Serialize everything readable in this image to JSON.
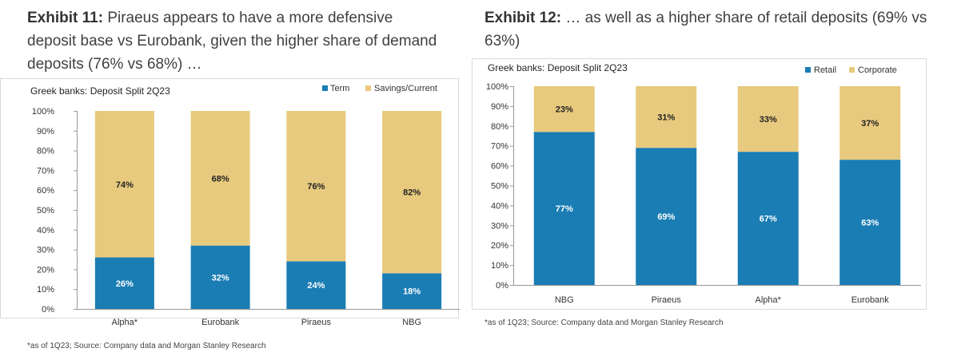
{
  "exhibit11": {
    "label": "Exhibit 11:",
    "text": "Piraeus appears to have a more defensive deposit base vs Eurobank, given the higher share of demand deposits (76% vs 68%) …",
    "footnote": "*as of 1Q23; Source: Company data and Morgan Stanley Research"
  },
  "exhibit12": {
    "label": "Exhibit 12:",
    "text": "… as well as a higher share of retail deposits (69% vs 63%)",
    "footnote": "*as of 1Q23; Source: Company data and Morgan Stanley Research"
  },
  "colors": {
    "blue": "#1a7db4",
    "tan": "#e8ca7e",
    "grid": "#d9d9d9",
    "axis": "#999999"
  },
  "chart_data": [
    {
      "type": "bar",
      "stacked": true,
      "title": "Greek banks: Deposit Split 2Q23",
      "categories": [
        "Alpha*",
        "Eurobank",
        "Piraeus",
        "NBG"
      ],
      "series": [
        {
          "name": "Term",
          "values": [
            26,
            32,
            24,
            18
          ],
          "labels": [
            "26%",
            "32%",
            "24%",
            "18%"
          ]
        },
        {
          "name": "Savings/Current",
          "values": [
            74,
            68,
            76,
            82
          ],
          "labels": [
            "74%",
            "68%",
            "76%",
            "82%"
          ]
        }
      ],
      "yticks": [
        "0%",
        "10%",
        "20%",
        "30%",
        "40%",
        "50%",
        "60%",
        "70%",
        "80%",
        "90%",
        "100%"
      ],
      "ylim": [
        0,
        100
      ],
      "legend": "top-right",
      "xlabel": "",
      "ylabel": ""
    },
    {
      "type": "bar",
      "stacked": true,
      "title": "Greek banks: Deposit Split 2Q23",
      "categories": [
        "NBG",
        "Piraeus",
        "Alpha*",
        "Eurobank"
      ],
      "series": [
        {
          "name": "Retail",
          "values": [
            77,
            69,
            67,
            63
          ],
          "labels": [
            "77%",
            "69%",
            "67%",
            "63%"
          ]
        },
        {
          "name": "Corporate",
          "values": [
            23,
            31,
            33,
            37
          ],
          "labels": [
            "23%",
            "31%",
            "33%",
            "37%"
          ]
        }
      ],
      "yticks": [
        "0%",
        "10%",
        "20%",
        "30%",
        "40%",
        "50%",
        "60%",
        "70%",
        "80%",
        "90%",
        "100%"
      ],
      "ylim": [
        0,
        100
      ],
      "legend": "top-right",
      "xlabel": "",
      "ylabel": ""
    }
  ]
}
